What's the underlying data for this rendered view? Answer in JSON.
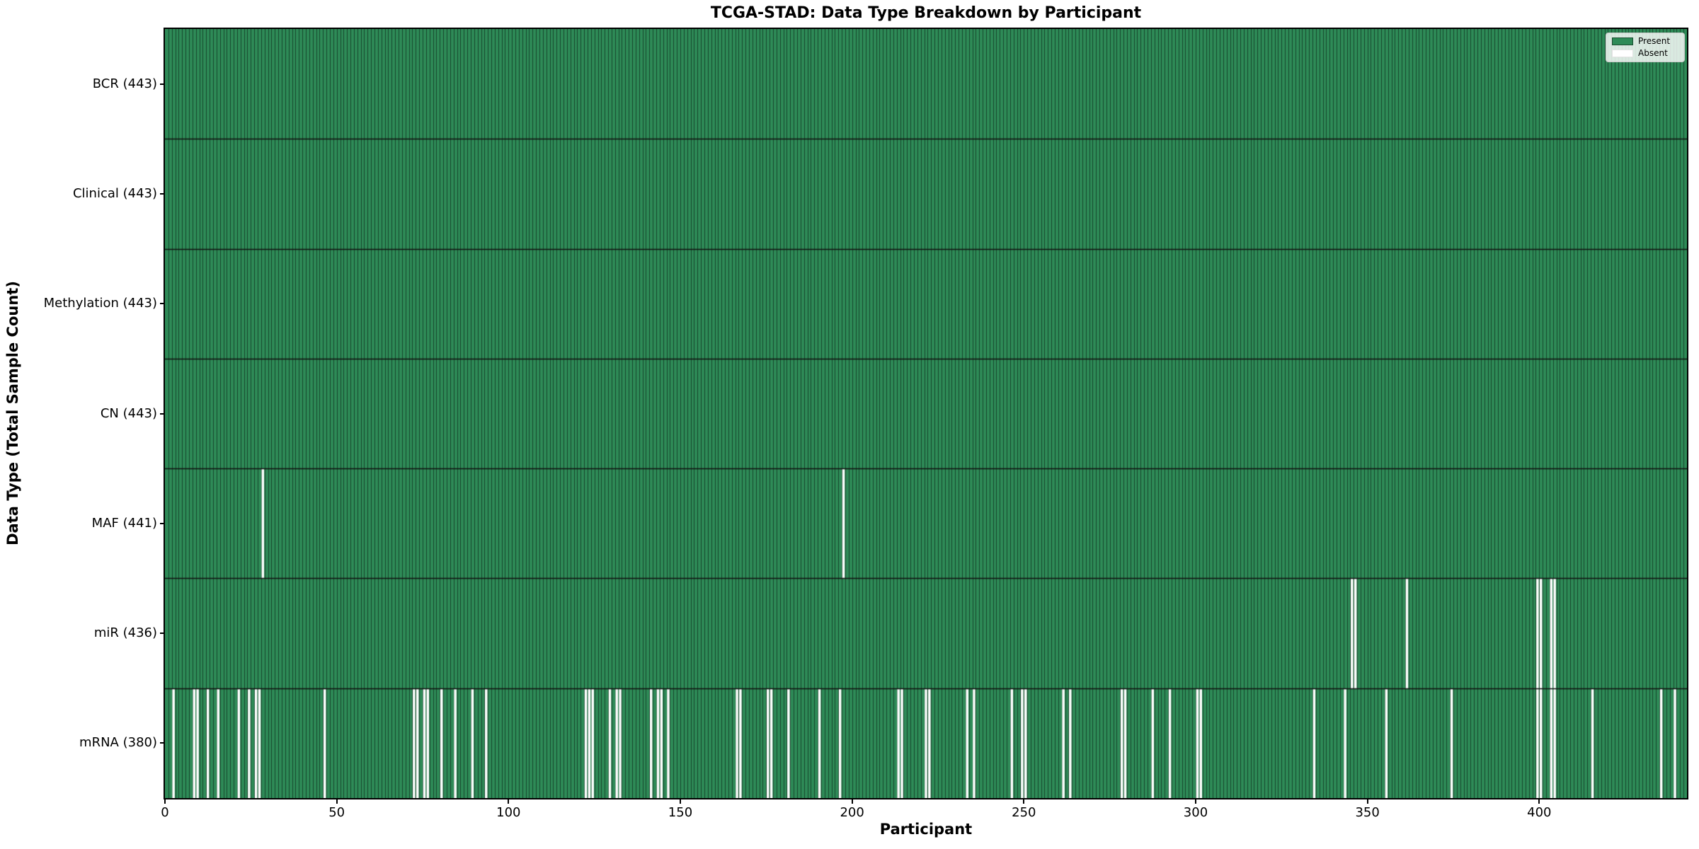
{
  "figure": {
    "title": "TCGA-STAD: Data Type Breakdown by Participant",
    "xlabel": "Participant",
    "ylabel": "Data Type (Total Sample Count)"
  },
  "legend": {
    "position": "upper right",
    "entries": [
      {
        "label": "Present",
        "color": "#2e8b57"
      },
      {
        "label": "Absent",
        "color": "#ffffff"
      }
    ]
  },
  "chart_data": {
    "type": "heatmap",
    "title": "TCGA-STAD: Data Type Breakdown by Participant",
    "xlabel": "Participant",
    "ylabel": "Data Type (Total Sample Count)",
    "n_participants": 443,
    "xlim": [
      0,
      443
    ],
    "x_ticks": [
      0,
      50,
      100,
      150,
      200,
      250,
      300,
      350,
      400
    ],
    "x_tick_labels": [
      "0",
      "50",
      "100",
      "150",
      "200",
      "250",
      "300",
      "350",
      "400"
    ],
    "grid": false,
    "legend_position": "upper right",
    "colors": {
      "present": "#2e8b57",
      "absent": "#ffffff",
      "bar_edge": "rgba(0,0,0,0.5)",
      "row_separator": "#111111",
      "plot_border": "#000000"
    },
    "rows": [
      {
        "label": "BCR (443)",
        "data_type": "BCR",
        "total_present": 443,
        "absent_participants": []
      },
      {
        "label": "Clinical (443)",
        "data_type": "Clinical",
        "total_present": 443,
        "absent_participants": []
      },
      {
        "label": "Methylation (443)",
        "data_type": "Methylation",
        "total_present": 443,
        "absent_participants": []
      },
      {
        "label": "CN (443)",
        "data_type": "CN",
        "total_present": 443,
        "absent_participants": []
      },
      {
        "label": "MAF (441)",
        "data_type": "MAF",
        "total_present": 441,
        "absent_participants": [
          28,
          197
        ]
      },
      {
        "label": "miR (436)",
        "data_type": "miR",
        "total_present": 436,
        "absent_participants": [
          345,
          346,
          361,
          399,
          400,
          403,
          404
        ]
      },
      {
        "label": "mRNA (380)",
        "data_type": "mRNA",
        "total_present": 380,
        "absent_participants": [
          2,
          8,
          9,
          12,
          15,
          21,
          24,
          26,
          27,
          46,
          72,
          73,
          75,
          76,
          80,
          84,
          89,
          93,
          122,
          123,
          124,
          129,
          131,
          132,
          141,
          143,
          144,
          146,
          166,
          167,
          175,
          176,
          181,
          190,
          196,
          213,
          214,
          221,
          222,
          233,
          235,
          246,
          249,
          250,
          261,
          263,
          278,
          279,
          287,
          292,
          300,
          301,
          334,
          343,
          355,
          374,
          399,
          400,
          403,
          404,
          415,
          435,
          439
        ]
      }
    ]
  }
}
